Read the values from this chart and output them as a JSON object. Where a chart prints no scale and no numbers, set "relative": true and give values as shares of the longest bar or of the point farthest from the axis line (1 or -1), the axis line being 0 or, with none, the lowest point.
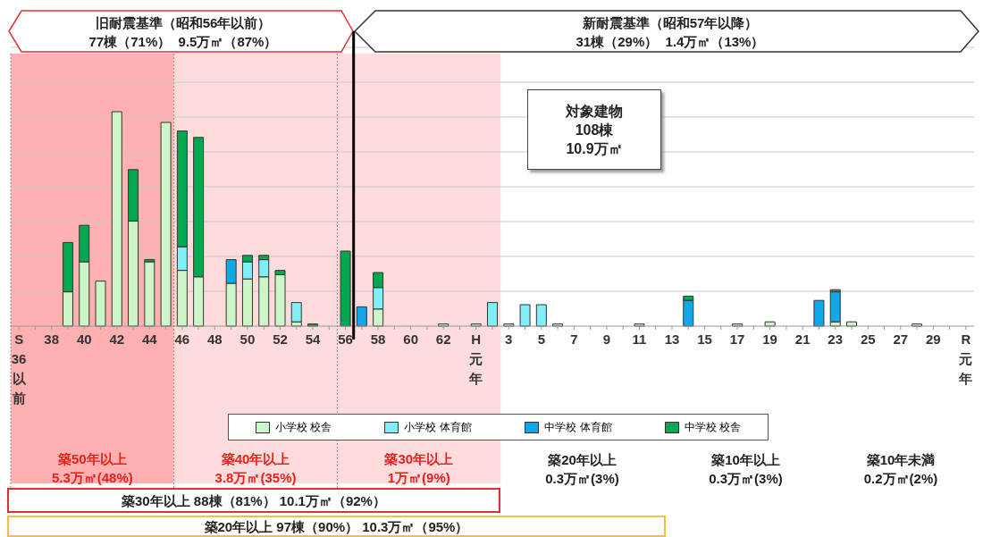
{
  "chart_data": {
    "type": "bar",
    "stacked": true,
    "relative": true,
    "grid": "y",
    "legend": "bottom",
    "tick_labels": "x",
    "categories": [
      "S36以前",
      null,
      "38",
      null,
      "40",
      null,
      "42",
      null,
      "44",
      null,
      "46",
      null,
      "48",
      null,
      "50",
      null,
      "52",
      null,
      "54",
      null,
      "56",
      null,
      "58",
      null,
      "60",
      null,
      "62",
      null,
      "H元年",
      null,
      "3",
      null,
      "5",
      null,
      "7",
      null,
      "9",
      null,
      "11",
      null,
      "13",
      null,
      "15",
      null,
      "17",
      null,
      "19",
      null,
      "21",
      null,
      "23",
      null,
      "25",
      null,
      "27",
      null,
      "29",
      null,
      "R元年"
    ],
    "series": [
      {
        "name": "小学校 校舎",
        "color": "#ccf5c8",
        "values": [
          null,
          null,
          null,
          0.16,
          0.3,
          0.21,
          1.0,
          0.49,
          0.3,
          0.95,
          0.26,
          0.23,
          null,
          0.2,
          0.22,
          0.23,
          0.24,
          0.02,
          null,
          null,
          null,
          null,
          0.08,
          null,
          null,
          null,
          0.01,
          null,
          0.01,
          null,
          0.01,
          null,
          null,
          0.01,
          null,
          null,
          null,
          null,
          0.01,
          null,
          null,
          null,
          null,
          null,
          0.01,
          null,
          0.02,
          null,
          null,
          null,
          0.02,
          0.02,
          null,
          null,
          null,
          0.01,
          null,
          null,
          null
        ]
      },
      {
        "name": "小学校 体育館",
        "color": "#80f0f8",
        "values": [
          null,
          null,
          null,
          null,
          null,
          null,
          null,
          null,
          null,
          null,
          0.11,
          null,
          null,
          null,
          0.08,
          0.08,
          null,
          0.09,
          null,
          null,
          null,
          null,
          0.1,
          null,
          null,
          null,
          null,
          null,
          null,
          0.11,
          null,
          0.1,
          0.1,
          null,
          null,
          null,
          null,
          null,
          null,
          null,
          null,
          null,
          null,
          null,
          null,
          null,
          null,
          null,
          null,
          null,
          null,
          null,
          null,
          null,
          null,
          null,
          null,
          null,
          null
        ]
      },
      {
        "name": "中学校 体育館",
        "color": "#10a8e8",
        "values": [
          null,
          null,
          null,
          null,
          null,
          null,
          null,
          null,
          null,
          null,
          null,
          null,
          null,
          0.11,
          null,
          null,
          null,
          null,
          null,
          null,
          null,
          0.09,
          null,
          null,
          null,
          null,
          null,
          null,
          null,
          null,
          null,
          null,
          null,
          null,
          null,
          null,
          null,
          null,
          null,
          null,
          null,
          0.12,
          null,
          null,
          null,
          null,
          null,
          null,
          null,
          0.12,
          0.14,
          null,
          null,
          null,
          null,
          null,
          null,
          null,
          null
        ]
      },
      {
        "name": "中学校 校舎",
        "color": "#00a850",
        "values": [
          null,
          null,
          null,
          0.23,
          0.17,
          null,
          null,
          0.24,
          0.01,
          null,
          0.54,
          0.65,
          null,
          null,
          0.03,
          0.02,
          0.02,
          null,
          0.01,
          null,
          0.35,
          null,
          0.07,
          null,
          null,
          null,
          null,
          null,
          null,
          null,
          null,
          null,
          null,
          null,
          null,
          null,
          null,
          null,
          null,
          null,
          null,
          0.02,
          null,
          null,
          null,
          null,
          null,
          null,
          null,
          null,
          0.01,
          null,
          null,
          null,
          null,
          null,
          null,
          null,
          null
        ]
      }
    ],
    "bands": [
      {
        "axis": "x",
        "from": "S36以前",
        "to": "46",
        "label": "築50年以上\n5.3万㎡(48%)",
        "color": "#ffb0b0"
      },
      {
        "axis": "x",
        "from": "46",
        "to": "56",
        "label": "築40年以上\n3.8万㎡(35%)",
        "color": "#ffdcdc"
      },
      {
        "axis": "x",
        "from": "56",
        "to": "3",
        "label": "築30年以上\n1万㎡(9%)",
        "color": "#ffdcdc"
      }
    ],
    "ref_lines": [
      {
        "axis": "x",
        "value": "56",
        "color": "#000000"
      }
    ],
    "annotations": [
      "旧耐震基準（昭和56年以前）\n77棟（71%）  9.5万㎡（87%）",
      "新耐震基準（昭和57年以降）\n31棟（29%）  1.4万㎡（13%）",
      "対象建物\n108棟\n10.9万㎡",
      "築30年以上 88棟（81%） 10.1万㎡（92%）",
      "築20年以上 97棟（90%） 10.3万㎡（95%）",
      "築20年以上\n0.3万㎡(3%)",
      "築10年以上\n0.3万㎡(3%)",
      "築10年未満\n0.2万㎡(2%)"
    ]
  }
}
